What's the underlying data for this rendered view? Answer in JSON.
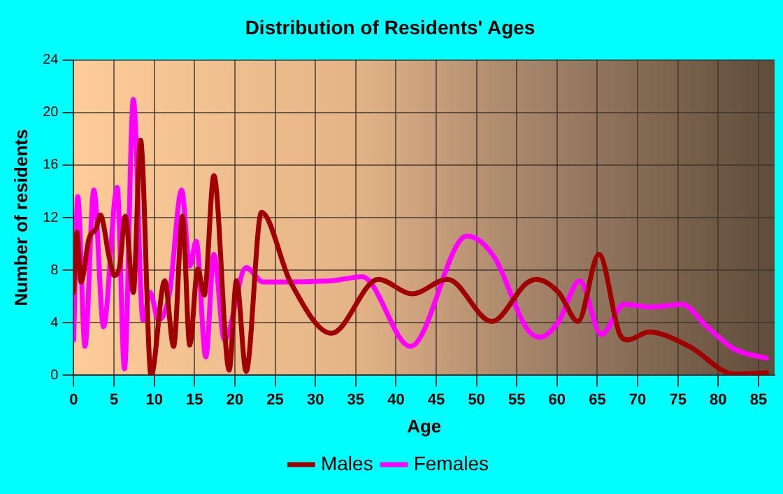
{
  "chart_data": {
    "type": "line",
    "title": "Distribution of Residents' Ages",
    "xlabel": "Age",
    "ylabel": "Number of residents",
    "xlim": [
      0,
      87
    ],
    "xticks": [
      0,
      5,
      10,
      15,
      20,
      25,
      30,
      35,
      40,
      45,
      50,
      55,
      60,
      65,
      70,
      75,
      80,
      85
    ],
    "ylim": [
      0,
      24
    ],
    "yticks": [
      0,
      4,
      8,
      12,
      16,
      20,
      24
    ],
    "grid": true,
    "legend": "bottom",
    "marker": "none",
    "line_style": "solid",
    "series": [
      {
        "name": "Males",
        "color": "#a00000",
        "x": [
          0,
          0.4,
          0.9,
          1.9,
          2.8,
          3.3,
          4.4,
          5,
          5.7,
          6.4,
          7.4,
          8.3,
          9.6,
          11.3,
          12.4,
          13.5,
          14.4,
          15.4,
          16.2,
          17.4,
          19.3,
          20.2,
          21.4,
          23.3,
          26.9,
          32,
          37.8,
          42,
          46.4,
          51.9,
          56.2,
          57.4,
          60.2,
          62.6,
          65.2,
          67.8,
          68.8,
          71.4,
          76.4,
          82,
          86
        ],
        "values": [
          6.3,
          10.9,
          7.1,
          10.4,
          11.2,
          12.2,
          9,
          7.6,
          8.3,
          12.1,
          6.3,
          17.9,
          0,
          7.2,
          2.2,
          12.1,
          2.3,
          8.1,
          6.1,
          15.2,
          0.4,
          7.2,
          0.3,
          12.4,
          7.1,
          3.2,
          7.3,
          6.2,
          7.3,
          4.1,
          7,
          7.3,
          6.3,
          4.1,
          9.2,
          3.1,
          2.7,
          3.3,
          2.2,
          0.1,
          0.2
        ]
      },
      {
        "name": "Females",
        "color": "#ff00ff",
        "x": [
          0,
          0.5,
          1.4,
          2.5,
          3.7,
          5.4,
          6.3,
          7.4,
          8.6,
          9.5,
          10.5,
          11.9,
          13.4,
          14.4,
          15.2,
          16.4,
          17.4,
          18.7,
          21.4,
          23.5,
          32,
          35.8,
          41.8,
          48.8,
          52.2,
          56.2,
          57.9,
          60.2,
          62.8,
          65.5,
          68.3,
          71.7,
          75.5,
          78.6,
          82,
          86
        ],
        "values": [
          2.7,
          13.6,
          2.2,
          14.1,
          3.7,
          14.3,
          0.5,
          21,
          4.2,
          6.3,
          4.2,
          6.3,
          14.1,
          8.3,
          10.2,
          1.4,
          9.2,
          2.7,
          8.2,
          7.1,
          7.2,
          7.5,
          2.2,
          10.6,
          9,
          3.6,
          2.9,
          4.1,
          7.2,
          3.1,
          5.4,
          5.2,
          5.4,
          3.7,
          2,
          1.3
        ]
      }
    ]
  }
}
